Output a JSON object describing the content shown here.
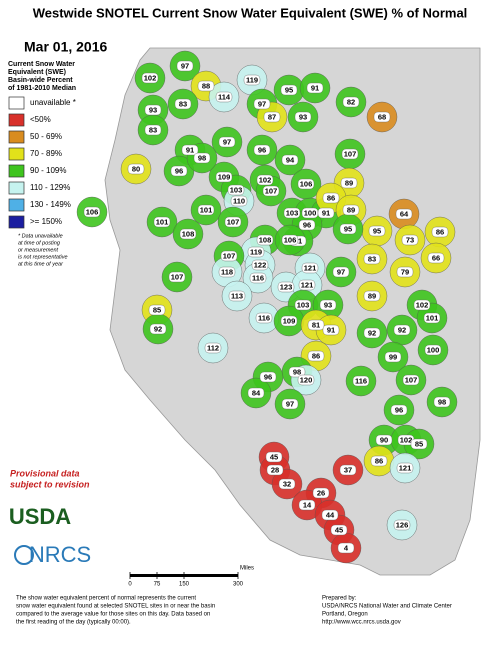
{
  "header": {
    "title": "Westwide SNOTEL Current Snow Water Equivalent (SWE) % of Normal",
    "date": "Mar 01, 2016"
  },
  "legend": {
    "title": [
      "Current Snow Water",
      "Equivalent (SWE)",
      "Basin-wide Percent",
      "of 1981-2010 Median"
    ],
    "items": [
      {
        "label": "unavailable *",
        "color": "#ffffff"
      },
      {
        "label": "<50%",
        "color": "#d8302a"
      },
      {
        "label": "50 - 69%",
        "color": "#d98c1f"
      },
      {
        "label": "70 - 89%",
        "color": "#e2e21a"
      },
      {
        "label": "90 - 109%",
        "color": "#3ec41e"
      },
      {
        "label": "110 - 129%",
        "color": "#c6f3ef"
      },
      {
        "label": "130 - 149%",
        "color": "#4fb0e6"
      },
      {
        "label": ">= 150%",
        "color": "#1b1ea0"
      }
    ],
    "note": [
      "* Data unavailable",
      "at time of posting",
      "or measurement",
      "is not representative",
      "at this time of year"
    ]
  },
  "basins": [
    102,
    97,
    88,
    114,
    119,
    95,
    91,
    97,
    87,
    93,
    82,
    68,
    83,
    93,
    83,
    91,
    97,
    96,
    107,
    80,
    96,
    109,
    98,
    102,
    94,
    106,
    89,
    103,
    107,
    110,
    106,
    101,
    108,
    101,
    107,
    103,
    100,
    91,
    96,
    86,
    89,
    64,
    95,
    73,
    86,
    95,
    91,
    108,
    106,
    107,
    119,
    107,
    122,
    121,
    118,
    116,
    123,
    121,
    97,
    83,
    79,
    66,
    113,
    116,
    103,
    93,
    89,
    102,
    101,
    85,
    92,
    109,
    81,
    91,
    92,
    92,
    100,
    112,
    86,
    99,
    98,
    116,
    96,
    120,
    107,
    84,
    97,
    96,
    98,
    90,
    102,
    85,
    86,
    121,
    45,
    28,
    32,
    37,
    26,
    14,
    44,
    45,
    4,
    126
  ],
  "provisional": [
    "Provisional data",
    "subject to revision"
  ],
  "logos": [
    "USDA",
    "NRCS"
  ],
  "scale": {
    "ticks": [
      0,
      75,
      150,
      300
    ],
    "unit": "Miles"
  },
  "footer": {
    "left": [
      "The show water equivalent percent of normal represents the current",
      "snow water equivalent found at selected SNOTEL sites in or near the basin",
      "compared to the average value for those sites on this day. Data based on",
      "the first reading of the day (typically 00:00)."
    ],
    "right": [
      "Prepared by:",
      "USDA/NRCS National Water and Climate Center",
      "Portland, Oregon",
      "http://www.wcc.nrcs.usda.gov"
    ]
  }
}
